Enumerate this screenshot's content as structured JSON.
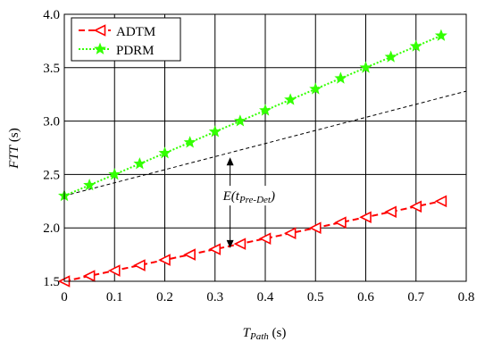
{
  "chart_data": {
    "type": "line",
    "xlabel": {
      "main": "T",
      "sub": "Path",
      "unit": " (s)"
    },
    "ylabel": {
      "main": "FTT",
      "unit": " (s)"
    },
    "xlim": [
      0,
      0.8
    ],
    "ylim": [
      1.5,
      4.0
    ],
    "xticks": [
      0,
      0.1,
      0.2,
      0.3,
      0.4,
      0.5,
      0.6,
      0.7,
      0.8
    ],
    "xtick_labels": [
      "0",
      "0.1",
      "0.2",
      "0.3",
      "0.4",
      "0.5",
      "0.6",
      "0.7",
      "0.8"
    ],
    "yticks": [
      1.5,
      2.0,
      2.5,
      3.0,
      3.5,
      4.0
    ],
    "ytick_labels": [
      "1.5",
      "2.0",
      "2.5",
      "3.0",
      "3.5",
      "4.0"
    ],
    "grid": true,
    "legend": "top-left",
    "x": [
      0,
      0.05,
      0.1,
      0.15,
      0.2,
      0.25,
      0.3,
      0.35,
      0.4,
      0.45,
      0.5,
      0.55,
      0.6,
      0.65,
      0.7,
      0.75
    ],
    "series": [
      {
        "name": "ADTM",
        "color": "#ff0000",
        "marker": "left-triangle",
        "dash": "dashed",
        "values": [
          1.5,
          1.55,
          1.6,
          1.65,
          1.7,
          1.75,
          1.8,
          1.85,
          1.9,
          1.95,
          2.0,
          2.05,
          2.1,
          2.15,
          2.2,
          2.25
        ]
      },
      {
        "name": "PDRM",
        "color": "#33ff00",
        "marker": "star",
        "dash": "dotted",
        "values": [
          2.3,
          2.4,
          2.5,
          2.6,
          2.7,
          2.8,
          2.9,
          3.0,
          3.1,
          3.2,
          3.3,
          3.4,
          3.5,
          3.6,
          3.7,
          3.8
        ]
      }
    ],
    "reference_line": {
      "x": [
        0,
        0.8
      ],
      "y": [
        2.3,
        3.28
      ],
      "color": "#000000",
      "dash": "dashed"
    },
    "annotation": {
      "x": 0.33,
      "y_top": 2.66,
      "y_bottom": 1.81,
      "label_main": "E(t",
      "label_sub": "Pre-Det",
      "label_end": ")",
      "label_y": 2.26
    }
  }
}
